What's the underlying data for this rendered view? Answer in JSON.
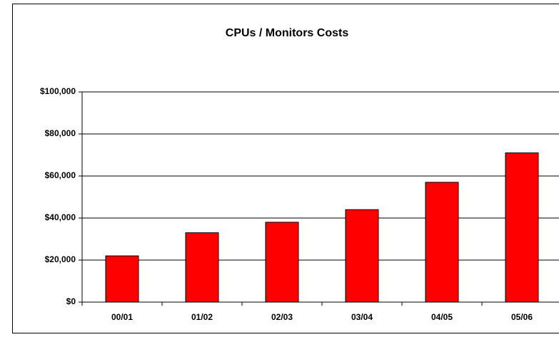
{
  "chart_data": {
    "type": "bar",
    "title": "CPUs / Monitors Costs",
    "categories": [
      "00/01",
      "01/02",
      "02/03",
      "03/04",
      "04/05",
      "05/06"
    ],
    "values": [
      22000,
      33000,
      38000,
      44000,
      57000,
      71000
    ],
    "color": "#ff0000",
    "ylim": [
      0,
      100000
    ],
    "yticks": [
      {
        "value": 0,
        "label": "$0"
      },
      {
        "value": 20000,
        "label": "$20,000"
      },
      {
        "value": 40000,
        "label": "$40,000"
      },
      {
        "value": 60000,
        "label": "$60,000"
      },
      {
        "value": 80000,
        "label": "$80,000"
      },
      {
        "value": 100000,
        "label": "$100,000"
      }
    ],
    "grid": true
  }
}
